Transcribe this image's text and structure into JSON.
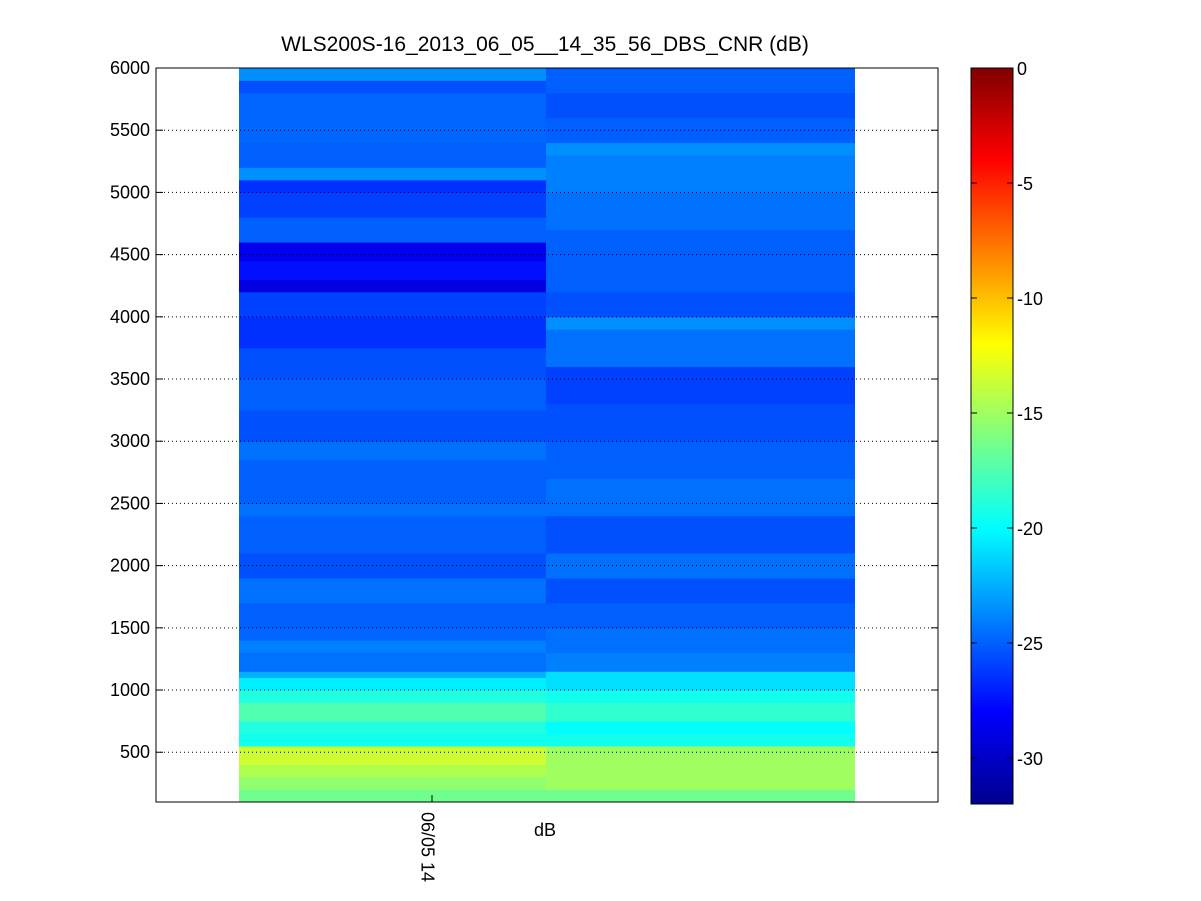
{
  "chart_data": {
    "type": "heatmap",
    "title": "WLS200S-16_2013_06_05__14_35_56_DBS_CNR (dB)",
    "xlabel": "dB",
    "x_tick_labels": [
      "06/05 14"
    ],
    "ylim": [
      100,
      6000
    ],
    "y_ticks": [
      500,
      1000,
      1500,
      2000,
      2500,
      3000,
      3500,
      4000,
      4500,
      5000,
      5500,
      6000
    ],
    "grid": "dotted horizontal",
    "colormap": "jet",
    "colorbar": {
      "location": "right",
      "clim": [
        -32,
        0
      ],
      "ticks": [
        0,
        -5,
        -10,
        -15,
        -20,
        -25,
        -30
      ]
    },
    "columns": [
      {
        "x": "06/05 14",
        "bins": [
          {
            "y0": 100,
            "y1": 200,
            "value": -16.5
          },
          {
            "y0": 200,
            "y1": 300,
            "value": -15.5
          },
          {
            "y0": 300,
            "y1": 400,
            "value": -14.5
          },
          {
            "y0": 400,
            "y1": 550,
            "value": -13.5
          },
          {
            "y0": 550,
            "y1": 650,
            "value": -19.5
          },
          {
            "y0": 650,
            "y1": 750,
            "value": -19
          },
          {
            "y0": 750,
            "y1": 900,
            "value": -17.5
          },
          {
            "y0": 900,
            "y1": 1000,
            "value": -19
          },
          {
            "y0": 1000,
            "y1": 1100,
            "value": -20.5
          },
          {
            "y0": 1100,
            "y1": 1150,
            "value": -22.5
          },
          {
            "y0": 1150,
            "y1": 1300,
            "value": -24.5
          },
          {
            "y0": 1300,
            "y1": 1400,
            "value": -24
          },
          {
            "y0": 1400,
            "y1": 1500,
            "value": -24.8
          },
          {
            "y0": 1500,
            "y1": 1700,
            "value": -25
          },
          {
            "y0": 1700,
            "y1": 1900,
            "value": -24.5
          },
          {
            "y0": 1900,
            "y1": 2100,
            "value": -25.5
          },
          {
            "y0": 2100,
            "y1": 2400,
            "value": -25
          },
          {
            "y0": 2400,
            "y1": 2500,
            "value": -24.5
          },
          {
            "y0": 2500,
            "y1": 2850,
            "value": -25
          },
          {
            "y0": 2850,
            "y1": 3000,
            "value": -24.5
          },
          {
            "y0": 3000,
            "y1": 3250,
            "value": -25.5
          },
          {
            "y0": 3250,
            "y1": 3500,
            "value": -25
          },
          {
            "y0": 3500,
            "y1": 3750,
            "value": -25.5
          },
          {
            "y0": 3750,
            "y1": 4000,
            "value": -26.5
          },
          {
            "y0": 4000,
            "y1": 4200,
            "value": -26
          },
          {
            "y0": 4200,
            "y1": 4300,
            "value": -29
          },
          {
            "y0": 4300,
            "y1": 4450,
            "value": -27.5
          },
          {
            "y0": 4450,
            "y1": 4600,
            "value": -28.5
          },
          {
            "y0": 4600,
            "y1": 4800,
            "value": -25
          },
          {
            "y0": 4800,
            "y1": 5000,
            "value": -26
          },
          {
            "y0": 5000,
            "y1": 5100,
            "value": -26.5
          },
          {
            "y0": 5100,
            "y1": 5200,
            "value": -23.5
          },
          {
            "y0": 5200,
            "y1": 5400,
            "value": -25
          },
          {
            "y0": 5400,
            "y1": 5800,
            "value": -24.8
          },
          {
            "y0": 5800,
            "y1": 5900,
            "value": -25.5
          },
          {
            "y0": 5900,
            "y1": 6000,
            "value": -23.5
          }
        ]
      },
      {
        "x": "",
        "bins": [
          {
            "y0": 100,
            "y1": 200,
            "value": -16.5
          },
          {
            "y0": 200,
            "y1": 550,
            "value": -15
          },
          {
            "y0": 550,
            "y1": 650,
            "value": -19.5
          },
          {
            "y0": 650,
            "y1": 750,
            "value": -20
          },
          {
            "y0": 750,
            "y1": 900,
            "value": -18.5
          },
          {
            "y0": 900,
            "y1": 1000,
            "value": -19.5
          },
          {
            "y0": 1000,
            "y1": 1150,
            "value": -21
          },
          {
            "y0": 1150,
            "y1": 1300,
            "value": -24
          },
          {
            "y0": 1300,
            "y1": 1500,
            "value": -24.5
          },
          {
            "y0": 1500,
            "y1": 1700,
            "value": -25
          },
          {
            "y0": 1700,
            "y1": 1900,
            "value": -25.5
          },
          {
            "y0": 1900,
            "y1": 2100,
            "value": -24.5
          },
          {
            "y0": 2100,
            "y1": 2400,
            "value": -25.5
          },
          {
            "y0": 2400,
            "y1": 2700,
            "value": -24.5
          },
          {
            "y0": 2700,
            "y1": 3000,
            "value": -25
          },
          {
            "y0": 3000,
            "y1": 3300,
            "value": -25.5
          },
          {
            "y0": 3300,
            "y1": 3600,
            "value": -26
          },
          {
            "y0": 3600,
            "y1": 3900,
            "value": -24.5
          },
          {
            "y0": 3900,
            "y1": 4000,
            "value": -23.5
          },
          {
            "y0": 4000,
            "y1": 4200,
            "value": -25.5
          },
          {
            "y0": 4200,
            "y1": 4700,
            "value": -25
          },
          {
            "y0": 4700,
            "y1": 5000,
            "value": -24.5
          },
          {
            "y0": 5000,
            "y1": 5300,
            "value": -24
          },
          {
            "y0": 5300,
            "y1": 5400,
            "value": -23.5
          },
          {
            "y0": 5400,
            "y1": 5600,
            "value": -25
          },
          {
            "y0": 5600,
            "y1": 5800,
            "value": -25.5
          },
          {
            "y0": 5800,
            "y1": 6000,
            "value": -25
          }
        ]
      }
    ]
  }
}
